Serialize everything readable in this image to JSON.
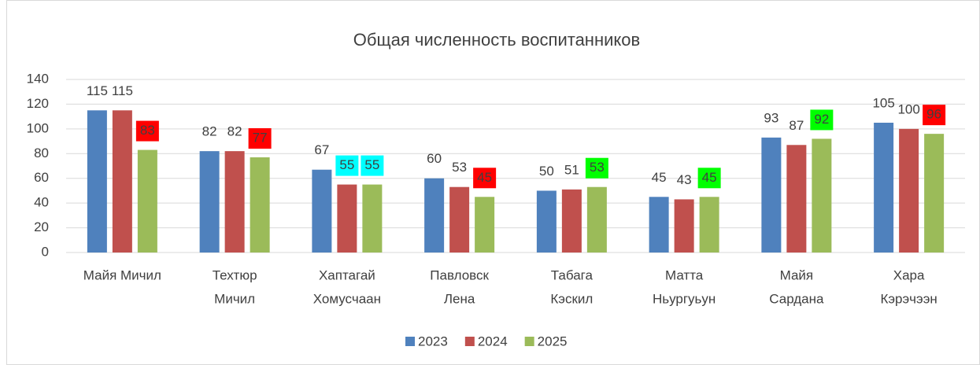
{
  "chart_data": {
    "type": "bar",
    "title": "Общая численность воспитанников",
    "categories": [
      [
        "Майя Мичил"
      ],
      [
        "Техтюр",
        "Мичил"
      ],
      [
        "Хаптагай",
        "Хомусчаан"
      ],
      [
        "Павловск",
        "Лена"
      ],
      [
        "Табага",
        "Кэскил"
      ],
      [
        "Матта",
        "Ньургуьун"
      ],
      [
        "Майя",
        "Сардана"
      ],
      [
        "Хара",
        "Кэрэчээн"
      ]
    ],
    "series": [
      {
        "name": "2023",
        "color": "#4f81bd",
        "values": [
          115,
          82,
          67,
          60,
          50,
          45,
          93,
          105
        ],
        "label_backgrounds": [
          null,
          null,
          null,
          null,
          null,
          null,
          null,
          null
        ]
      },
      {
        "name": "2024",
        "color": "#c0504d",
        "values": [
          115,
          82,
          55,
          53,
          51,
          43,
          87,
          100
        ],
        "label_backgrounds": [
          null,
          null,
          "#00ffff",
          null,
          null,
          null,
          null,
          null
        ]
      },
      {
        "name": "2025",
        "color": "#9bbb59",
        "values": [
          83,
          77,
          55,
          45,
          53,
          45,
          92,
          96
        ],
        "label_backgrounds": [
          "#ff0000",
          "#ff0000",
          "#00ffff",
          "#ff0000",
          "#00ff00",
          "#00ff00",
          "#00ff00",
          "#ff0000"
        ]
      }
    ],
    "ylim": [
      0,
      140
    ],
    "yticks": [
      0,
      20,
      40,
      60,
      80,
      100,
      120,
      140
    ],
    "grid": true,
    "legend": "bottom"
  }
}
